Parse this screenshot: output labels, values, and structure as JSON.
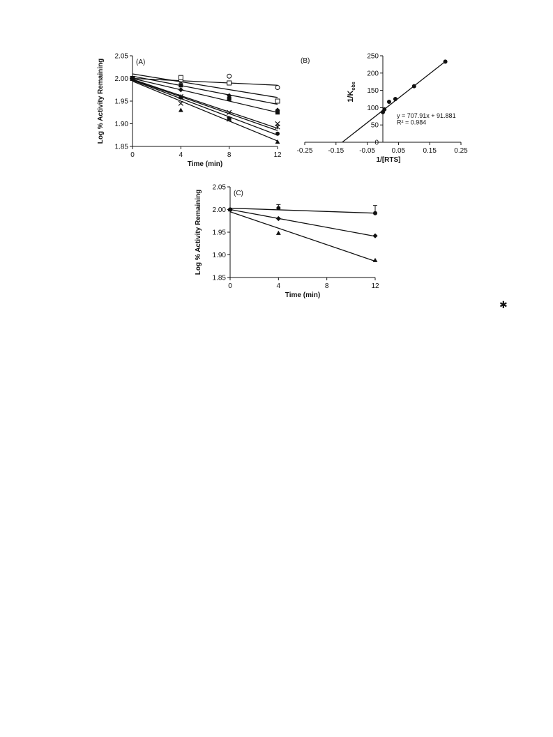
{
  "stray_mark": "✱",
  "chart_data": [
    {
      "panel_label": "(A)",
      "type": "line-scatter",
      "xlabel": "Time (min)",
      "ylabel": "Log % Activity Remaining",
      "xlim": [
        0,
        12
      ],
      "ylim": [
        1.85,
        2.05
      ],
      "xticks": [
        0,
        4,
        8,
        12
      ],
      "yticks": [
        1.85,
        1.9,
        1.95,
        2.0,
        2.05
      ],
      "ytick_labels": [
        "1.85",
        "1.90",
        "1.95",
        "2.00",
        "2.05"
      ],
      "series": [
        {
          "marker": "circle-open",
          "points": [
            [
              0,
              2.0
            ],
            [
              4,
              1.995
            ],
            [
              8,
              2.005
            ],
            [
              12,
              1.98
            ]
          ],
          "fit": [
            [
              0,
              2.0
            ],
            [
              12,
              1.985
            ]
          ]
        },
        {
          "marker": "square-open",
          "points": [
            [
              0,
              2.0
            ],
            [
              4,
              2.002
            ],
            [
              8,
              1.99
            ],
            [
              12,
              1.95
            ]
          ],
          "fit": [
            [
              0,
              2.01
            ],
            [
              12,
              1.958
            ]
          ]
        },
        {
          "marker": "square-filled",
          "points": [
            [
              0,
              2.0
            ],
            [
              4,
              1.985
            ],
            [
              8,
              1.955
            ],
            [
              12,
              1.925
            ]
          ],
          "fit": [
            [
              0,
              2.005
            ],
            [
              12,
              1.943
            ]
          ]
        },
        {
          "marker": "diamond-filled",
          "points": [
            [
              0,
              2.0
            ],
            [
              4,
              1.975
            ],
            [
              8,
              1.962
            ],
            [
              12,
              1.93
            ]
          ],
          "fit": [
            [
              0,
              2.0
            ],
            [
              12,
              1.925
            ]
          ]
        },
        {
          "marker": "cross",
          "points": [
            [
              0,
              2.0
            ],
            [
              4,
              1.945
            ],
            [
              8,
              1.925
            ],
            [
              12,
              1.9
            ]
          ],
          "fit": [
            [
              0,
              1.998
            ],
            [
              12,
              1.89
            ]
          ]
        },
        {
          "marker": "asterisk",
          "points": [
            [
              0,
              2.0
            ],
            [
              4,
              1.96
            ],
            [
              8,
              1.91
            ],
            [
              12,
              1.893
            ]
          ],
          "fit": [
            [
              0,
              1.997
            ],
            [
              12,
              1.885
            ]
          ]
        },
        {
          "marker": "circle-filled",
          "points": [
            [
              0,
              2.0
            ],
            [
              4,
              1.958
            ],
            [
              8,
              1.912
            ],
            [
              12,
              1.878
            ]
          ],
          "fit": [
            [
              0,
              1.996
            ],
            [
              12,
              1.875
            ]
          ]
        },
        {
          "marker": "triangle-filled",
          "points": [
            [
              0,
              2.0
            ],
            [
              4,
              1.93
            ],
            [
              8,
              1.912
            ],
            [
              12,
              1.86
            ]
          ],
          "fit": [
            [
              0,
              1.994
            ],
            [
              12,
              1.862
            ]
          ]
        }
      ]
    },
    {
      "panel_label": "(B)",
      "type": "line-scatter",
      "xlabel": "1/[RTS]",
      "ylabel": "1/K",
      "ylabel_sub": "obs",
      "xlim": [
        -0.25,
        0.25
      ],
      "ylim": [
        0,
        250
      ],
      "xticks": [
        -0.25,
        -0.15,
        -0.05,
        0.05,
        0.15,
        0.25
      ],
      "xtick_labels": [
        "-0.25",
        "-0.15",
        "-0.05",
        "0.05",
        "0.15",
        "0.25"
      ],
      "yticks": [
        0,
        50,
        100,
        150,
        200,
        250
      ],
      "ytick_labels": [
        "0",
        "50",
        "100",
        "150",
        "200",
        "250"
      ],
      "equation": "y = 707.91x + 91.881",
      "r_squared": "R² = 0.984",
      "points": [
        [
          0.0,
          87
        ],
        [
          0.005,
          95
        ],
        [
          0.02,
          117
        ],
        [
          0.04,
          125
        ],
        [
          0.1,
          162
        ],
        [
          0.2,
          233
        ]
      ],
      "fit": [
        [
          -0.13,
          0
        ],
        [
          0.2,
          233.5
        ]
      ]
    },
    {
      "panel_label": "(C)",
      "type": "line-scatter",
      "xlabel": "Time (min)",
      "ylabel": "Log % Activity Remaining",
      "xlim": [
        0,
        12
      ],
      "ylim": [
        1.85,
        2.05
      ],
      "xticks": [
        0,
        4,
        8,
        12
      ],
      "yticks": [
        1.85,
        1.9,
        1.95,
        2.0,
        2.05
      ],
      "ytick_labels": [
        "1.85",
        "1.90",
        "1.95",
        "2.00",
        "2.05"
      ],
      "series": [
        {
          "marker": "circle-filled",
          "points": [
            [
              0,
              2.0
            ],
            [
              4,
              2.003
            ],
            [
              12,
              1.992
            ]
          ],
          "error_up": [
            0,
            0.008,
            0.017
          ],
          "fit": [
            [
              0,
              2.003
            ],
            [
              12,
              1.992
            ]
          ]
        },
        {
          "marker": "diamond-filled",
          "points": [
            [
              0,
              2.0
            ],
            [
              4,
              1.98
            ],
            [
              12,
              1.942
            ]
          ],
          "error_up": [
            0,
            0,
            0
          ],
          "fit": [
            [
              0,
              2.0
            ],
            [
              12,
              1.941
            ]
          ]
        },
        {
          "marker": "triangle-filled",
          "points": [
            [
              0,
              2.0
            ],
            [
              4,
              1.948
            ],
            [
              12,
              1.888
            ]
          ],
          "error_up": [
            0,
            0,
            0
          ],
          "fit": [
            [
              0,
              1.995
            ],
            [
              12,
              1.886
            ]
          ]
        }
      ]
    }
  ]
}
